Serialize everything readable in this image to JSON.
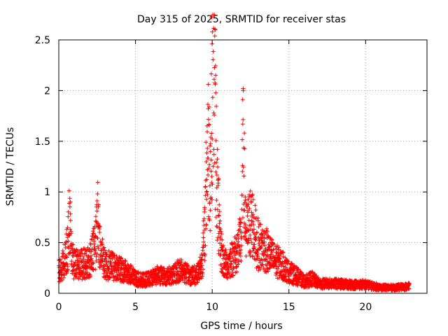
{
  "chart_data": {
    "type": "scatter",
    "title": "Day 315 of 2025, SRMTID for receiver stas",
    "xlabel": "GPS time / hours",
    "ylabel": "SRMTID / TECUs",
    "xlim": [
      0,
      24
    ],
    "ylim": [
      0,
      2.5
    ],
    "x_ticks": [
      0,
      5,
      10,
      15,
      20
    ],
    "y_ticks": [
      0,
      0.5,
      1,
      1.5,
      2,
      2.5
    ],
    "x_tick_labels": [
      "0",
      "5",
      "10",
      "15",
      "20"
    ],
    "y_tick_labels": [
      "0",
      "0.5",
      "1",
      "1.5",
      "2",
      "2.5"
    ],
    "grid": true,
    "marker": "plus",
    "marker_color": "#ff0000",
    "series": [
      {
        "name": "SRMTID",
        "profile_x": [
          0.0,
          0.3,
          0.6,
          0.7,
          0.8,
          1.0,
          1.5,
          2.0,
          2.4,
          2.5,
          2.7,
          3.0,
          3.5,
          4.0,
          4.5,
          5.0,
          5.5,
          6.0,
          6.5,
          7.0,
          7.5,
          8.0,
          8.5,
          9.0,
          9.3,
          9.5,
          9.7,
          9.9,
          10.0,
          10.1,
          10.2,
          10.3,
          10.5,
          10.8,
          11.0,
          11.5,
          11.9,
          12.0,
          12.1,
          12.2,
          12.4,
          12.6,
          12.8,
          13.0,
          13.5,
          14.0,
          14.5,
          15.0,
          15.5,
          16.0,
          16.5,
          17.0,
          18.0,
          19.0,
          20.0,
          21.0,
          22.0,
          22.8
        ],
        "profile_y": [
          0.25,
          0.3,
          0.5,
          0.85,
          0.45,
          0.3,
          0.3,
          0.33,
          0.5,
          0.85,
          0.45,
          0.3,
          0.28,
          0.25,
          0.22,
          0.15,
          0.14,
          0.15,
          0.2,
          0.17,
          0.2,
          0.25,
          0.18,
          0.2,
          0.3,
          0.6,
          1.6,
          1.3,
          2.2,
          2.42,
          1.8,
          1.2,
          0.5,
          0.3,
          0.3,
          0.4,
          0.55,
          1.5,
          1.1,
          0.6,
          0.7,
          0.75,
          0.6,
          0.5,
          0.45,
          0.35,
          0.3,
          0.22,
          0.18,
          0.12,
          0.15,
          0.1,
          0.1,
          0.09,
          0.09,
          0.06,
          0.06,
          0.07
        ],
        "x_range": [
          0.0,
          22.85
        ],
        "samples_per_hour": 120
      }
    ]
  }
}
